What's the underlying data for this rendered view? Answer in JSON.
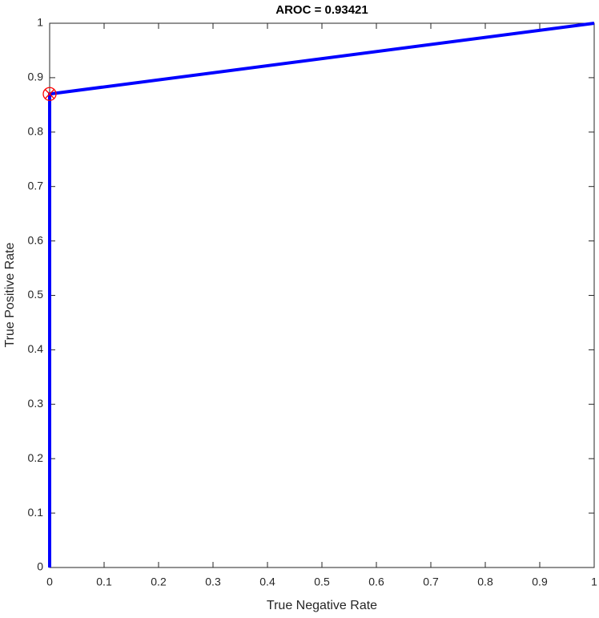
{
  "chart_data": {
    "type": "line",
    "title": "AROC = 0.93421",
    "xlabel": "True Negative Rate",
    "ylabel": "True Positive Rate",
    "series": [
      {
        "color": "#0000ff",
        "x": [
          0,
          0,
          1
        ],
        "values": [
          0,
          0.87,
          1
        ]
      }
    ],
    "highlight": {
      "x": 0,
      "y": 0.87,
      "color": "#ff0000"
    },
    "xlim": [
      0,
      1
    ],
    "ylim": [
      0,
      1
    ],
    "xticks": [
      0,
      0.1,
      0.2,
      0.3,
      0.4,
      0.5,
      0.6,
      0.7,
      0.8,
      0.9,
      1
    ],
    "yticks": [
      0,
      0.1,
      0.2,
      0.3,
      0.4,
      0.5,
      0.6,
      0.7,
      0.8,
      0.9,
      1
    ],
    "box": true
  }
}
